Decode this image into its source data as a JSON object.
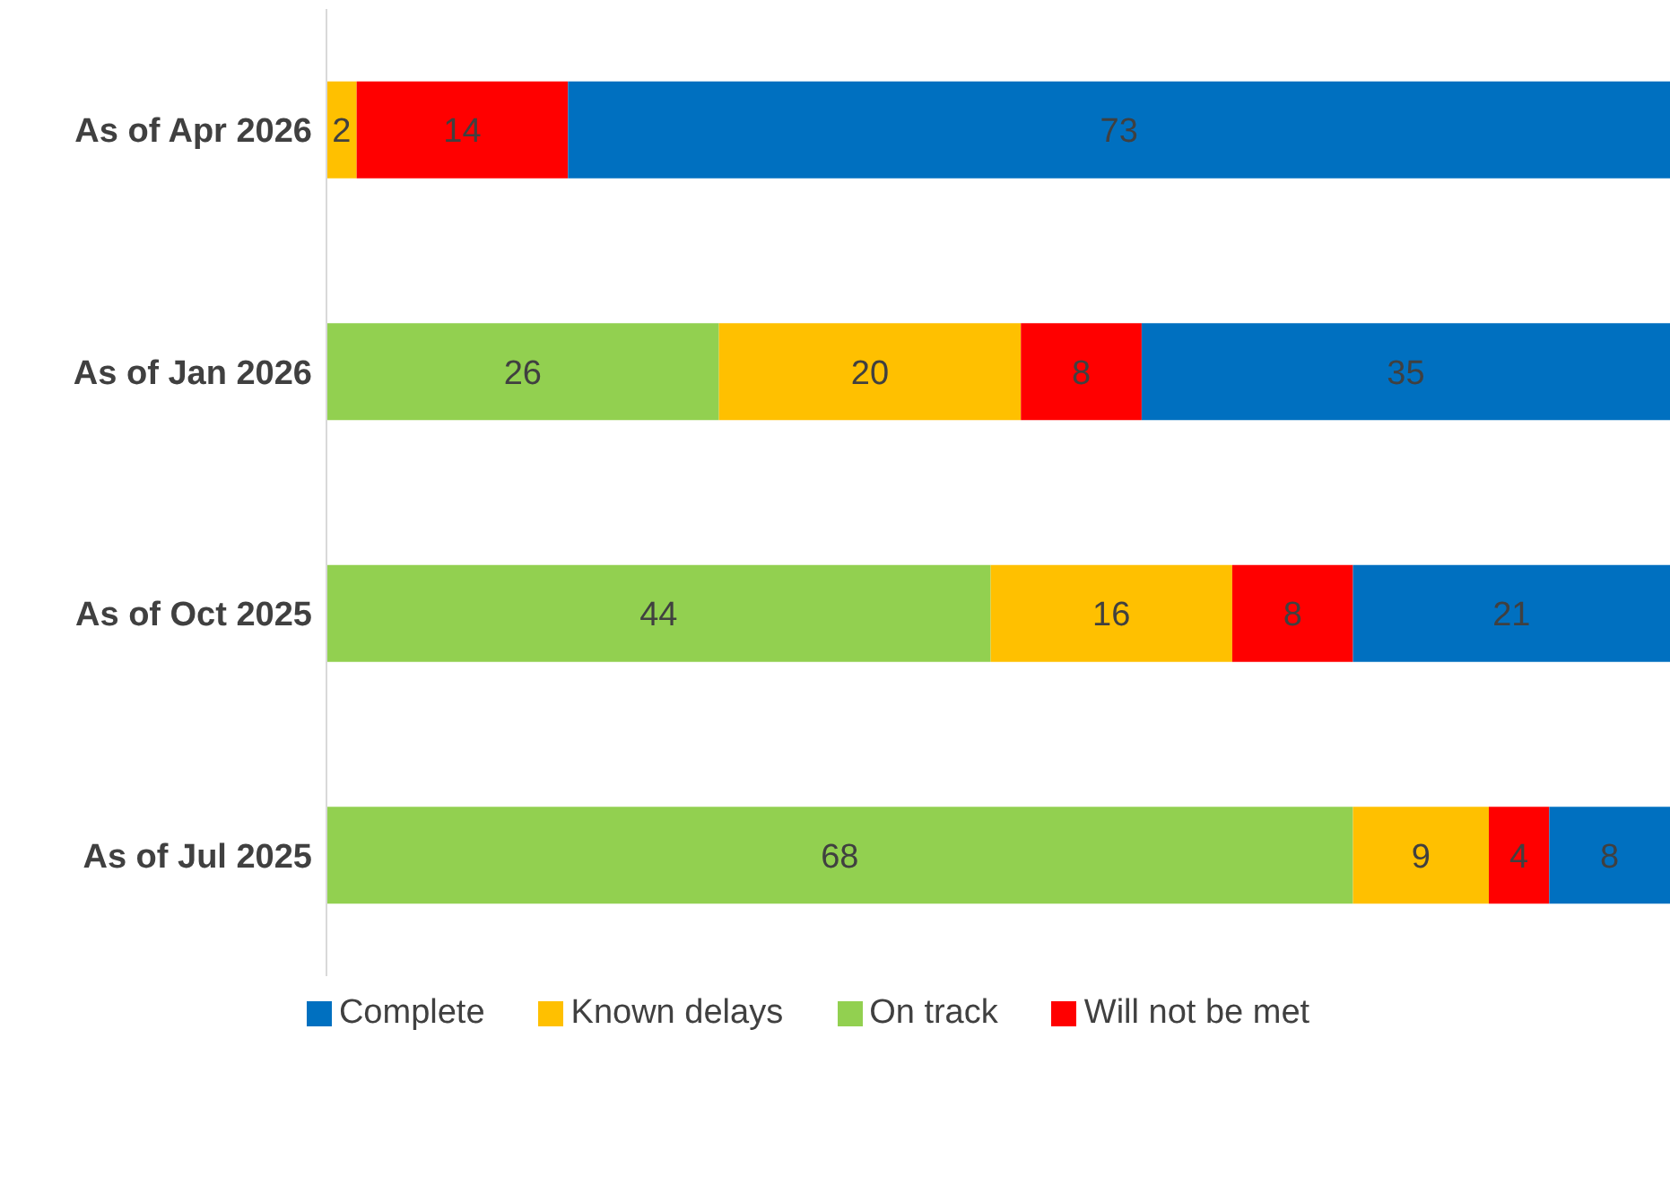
{
  "chart_data": {
    "type": "bar",
    "orientation": "horizontal",
    "stacked": true,
    "data_labels": true,
    "legend": "bottom",
    "grid": false,
    "categories": [
      "As of Apr 2026",
      "As of Jan 2026",
      "As of Oct 2025",
      "As of Jul 2025"
    ],
    "series": [
      {
        "name": "On track",
        "color": "#92d050",
        "values": [
          null,
          26,
          44,
          68
        ]
      },
      {
        "name": "Known delays",
        "color": "#ffc000",
        "values": [
          2,
          20,
          16,
          9
        ]
      },
      {
        "name": "Will not be met",
        "color": "#ff0000",
        "values": [
          14,
          8,
          8,
          4
        ]
      },
      {
        "name": "Complete",
        "color": "#0070c0",
        "values": [
          73,
          35,
          21,
          8
        ]
      }
    ]
  }
}
